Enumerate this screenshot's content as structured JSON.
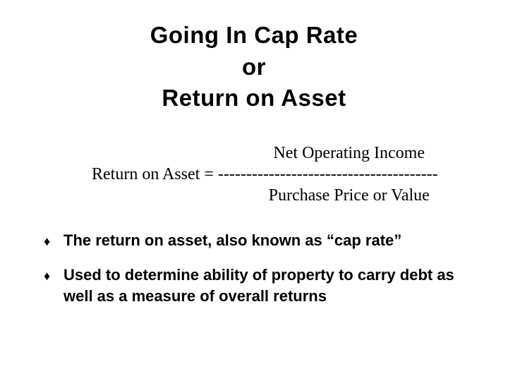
{
  "title": {
    "line1": "Going In Cap Rate",
    "line2": "or",
    "line3": "Return on Asset"
  },
  "formula": {
    "lhs": "Return on Asset  = ",
    "numerator": "Net Operating Income",
    "divider": "---------------------------------------",
    "denominator": "Purchase Price or Value"
  },
  "bullets": [
    "The return on asset, also known as “cap rate”",
    "Used to determine ability of property to carry debt as well as a measure of overall returns"
  ],
  "styling": {
    "background_color": "#ffffff",
    "text_color": "#000000",
    "title_font": "Arial Black",
    "title_fontsize": 33,
    "title_weight": 900,
    "formula_font": "Times New Roman",
    "formula_fontsize": 24,
    "bullet_font": "Arial Black",
    "bullet_fontsize": 22,
    "bullet_weight": 900,
    "bullet_marker": "♦",
    "slide_width": 720,
    "slide_height": 540
  }
}
